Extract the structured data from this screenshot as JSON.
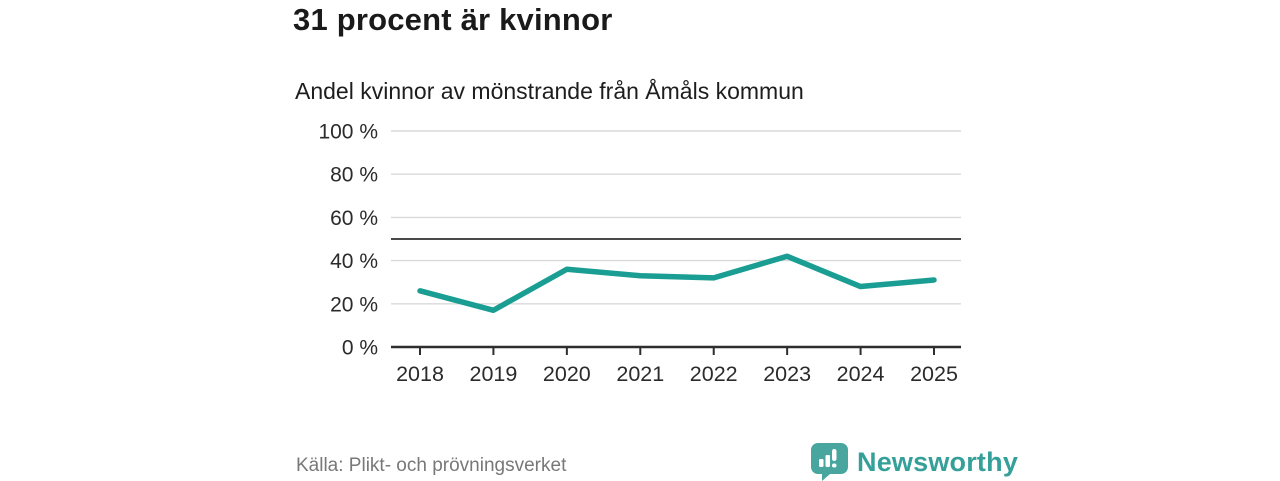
{
  "header": {
    "title": "31 procent är kvinnor",
    "subtitle": "Andel kvinnor av mönstrande från Åmåls kommun"
  },
  "chart_data": {
    "type": "line",
    "title": "31 procent är kvinnor",
    "subtitle": "Andel kvinnor av mönstrande från Åmåls kommun",
    "categories": [
      "2018",
      "2019",
      "2020",
      "2021",
      "2022",
      "2023",
      "2024",
      "2025"
    ],
    "series": [
      {
        "name": "Andel kvinnor av mönstrande",
        "values": [
          26,
          17,
          36,
          33,
          32,
          42,
          28,
          31
        ]
      }
    ],
    "unit": "%",
    "xlabel": "",
    "ylabel": "",
    "ylim": [
      0,
      100
    ],
    "yticks": [
      0,
      20,
      40,
      60,
      80,
      100
    ],
    "ytick_suffix": " %",
    "reference_line": 50,
    "grid": true,
    "legend_position": "none"
  },
  "colors": {
    "line": "#1a9e93",
    "gridline": "#d9d9d9",
    "reference_line": "#4a4a4a",
    "axis": "#2e2e2e",
    "tick_label": "#2b2b2b",
    "source_text": "#787878",
    "brand_teal": "#35a099",
    "logo_bubble": "#49a69e"
  },
  "footer": {
    "source": "Källa: Plikt- och prövningsverket",
    "brand": "Newsworthy"
  }
}
